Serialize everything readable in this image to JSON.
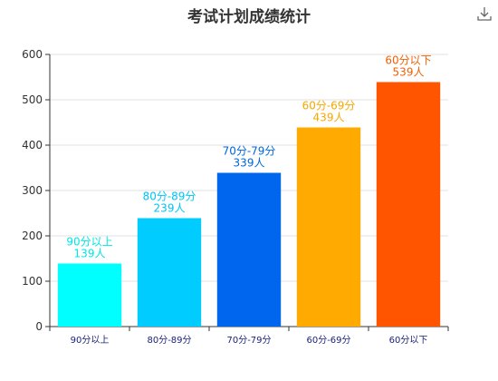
{
  "toolbar": {
    "download_icon": "download-icon"
  },
  "chart_data": {
    "type": "bar",
    "title": "考试计划成绩统计",
    "xlabel": "",
    "ylabel": "",
    "ylim": [
      0,
      600
    ],
    "yticks": [
      0,
      100,
      200,
      300,
      400,
      500,
      600
    ],
    "grid": true,
    "categories": [
      "90分以上",
      "80分-89分",
      "70分-79分",
      "60分-69分",
      "60分以下"
    ],
    "values": [
      139,
      239,
      339,
      439,
      539
    ],
    "data_labels": [
      [
        "90分以上",
        "139人"
      ],
      [
        "80分-89分",
        "239人"
      ],
      [
        "70分-79分",
        "339人"
      ],
      [
        "60分-69分",
        "439人"
      ],
      [
        "60分以下",
        "539人"
      ]
    ],
    "colors": [
      "#00ffff",
      "#00ccff",
      "#0066ee",
      "#ffaa00",
      "#ff5500"
    ],
    "label_colors": [
      "#00e5e5",
      "#00c4f5",
      "#0066dd",
      "#f5a800",
      "#f06000"
    ],
    "axis_label_colors": [
      "#1a237e",
      "#1a237e",
      "#1a237e",
      "#1a237e",
      "#1a237e"
    ]
  }
}
